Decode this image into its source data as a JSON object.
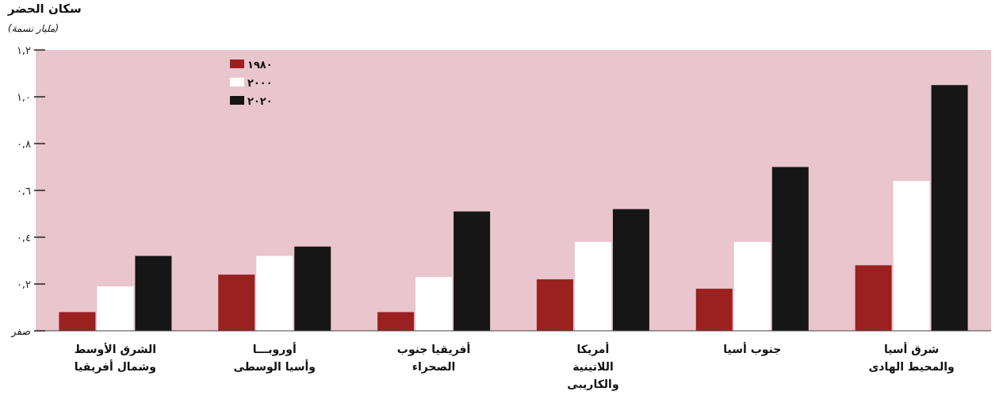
{
  "chart_data": {
    "type": "bar",
    "title": "سكان الحضر",
    "subtitle": "(مليار نسمة)",
    "categories": [
      "الشرق الأوسط\nوشمال أفريقيا",
      "أوروبـــا\nوأسيا الوسطى",
      "أفريقيا جنوب\nالصحراء",
      "أمريكا\nاللاتينية\nوالكاريبى",
      "جنوب أسيا",
      "شرق أسيا\nوالمحيط الهادى"
    ],
    "series": [
      {
        "name": "١٩٨٠",
        "color": "#9b2020",
        "values": [
          0.08,
          0.24,
          0.08,
          0.22,
          0.18,
          0.28
        ]
      },
      {
        "name": "٢٠٠٠",
        "color": "#ffffff",
        "values": [
          0.19,
          0.32,
          0.23,
          0.38,
          0.38,
          0.64
        ]
      },
      {
        "name": "٢٠٢٠",
        "color": "#161616",
        "values": [
          0.32,
          0.36,
          0.51,
          0.52,
          0.7,
          1.05
        ]
      }
    ],
    "ylim": [
      0,
      1.2
    ],
    "yticks": [
      {
        "value": 0,
        "label": "صفر"
      },
      {
        "value": 0.2,
        "label": "٠,٢"
      },
      {
        "value": 0.4,
        "label": "٠,٤"
      },
      {
        "value": 0.6,
        "label": "٠,٦"
      },
      {
        "value": 0.8,
        "label": "٠,٨"
      },
      {
        "value": 1.0,
        "label": "١,٠"
      },
      {
        "value": 1.2,
        "label": "١,٢"
      }
    ],
    "legend": "top left",
    "grid": false
  }
}
